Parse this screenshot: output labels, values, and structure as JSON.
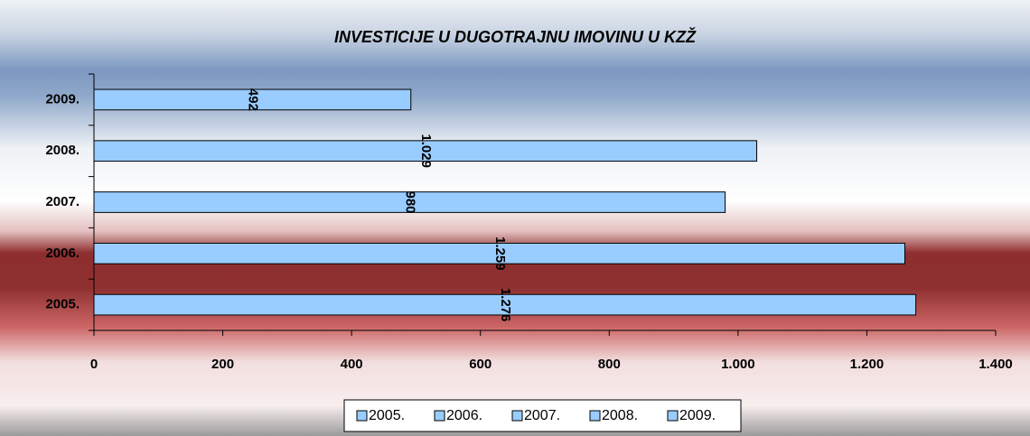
{
  "chart_data": {
    "type": "hbar",
    "title": "INVESTICIJE U DUGOTRAJNU IMOVINU U KZŽ",
    "categories": [
      "2005.",
      "2006.",
      "2007.",
      "2008.",
      "2009."
    ],
    "values": [
      1276,
      1259,
      980,
      1029,
      492
    ],
    "value_labels": [
      "1.276",
      "1.259",
      "980",
      "1.029",
      "492"
    ],
    "color": "#99ccff",
    "xlim": [
      0,
      1400
    ],
    "xticks": [
      0,
      200,
      400,
      600,
      800,
      {
        "value": 1000,
        "label": "1.000"
      },
      {
        "value": 1200,
        "label": "1.200"
      },
      {
        "value": 1400,
        "label": "1.400"
      }
    ],
    "legend": "bottom"
  }
}
